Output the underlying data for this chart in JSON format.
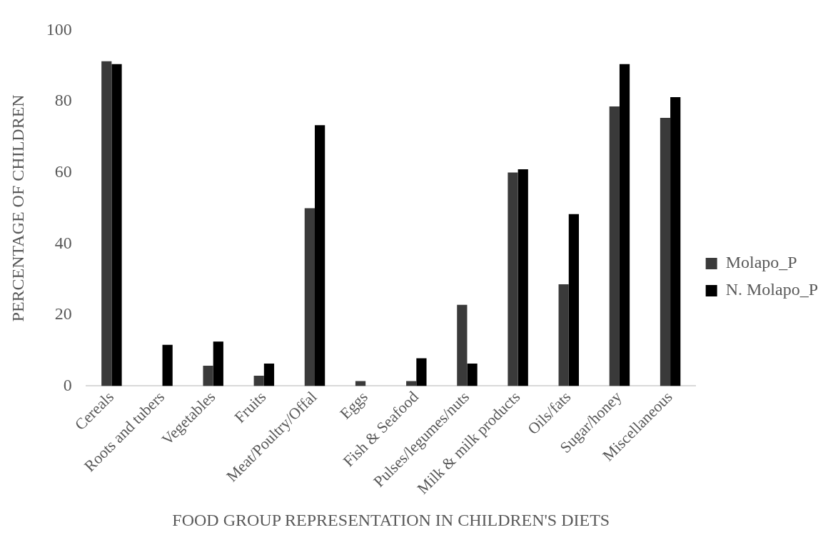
{
  "chart_data": {
    "type": "bar",
    "xlabel": "FOOD GROUP REPRESENTATION IN CHILDREN'S DIETS",
    "ylabel": "PERCENTAGE OF CHILDREN",
    "categories": [
      "Cereals",
      "Roots and tubers",
      "Vegetables",
      "Fruits",
      "Meat/Poultry/Offal",
      "Eggs",
      "Fish & Seafood",
      "Pulses/legumes/nuts",
      "Milk & milk products",
      "Oils/fats",
      "Sugar/honey",
      "Miscellaneous"
    ],
    "series": [
      {
        "name": "Molapo_P",
        "color": "#3a3a3a",
        "values": [
          91.3,
          0,
          5.7,
          2.9,
          50.0,
          1.4,
          1.4,
          22.8,
          60.0,
          28.6,
          78.6,
          75.4
        ]
      },
      {
        "name": "N. Molapo_P",
        "color": "#000000",
        "values": [
          90.5,
          11.6,
          12.5,
          6.3,
          73.3,
          0,
          7.8,
          6.3,
          60.9,
          48.3,
          90.5,
          81.2
        ]
      }
    ],
    "ylim": [
      0,
      100
    ],
    "yticks": [
      0,
      20,
      40,
      60,
      80,
      100
    ],
    "grid": false,
    "legend": "right"
  }
}
